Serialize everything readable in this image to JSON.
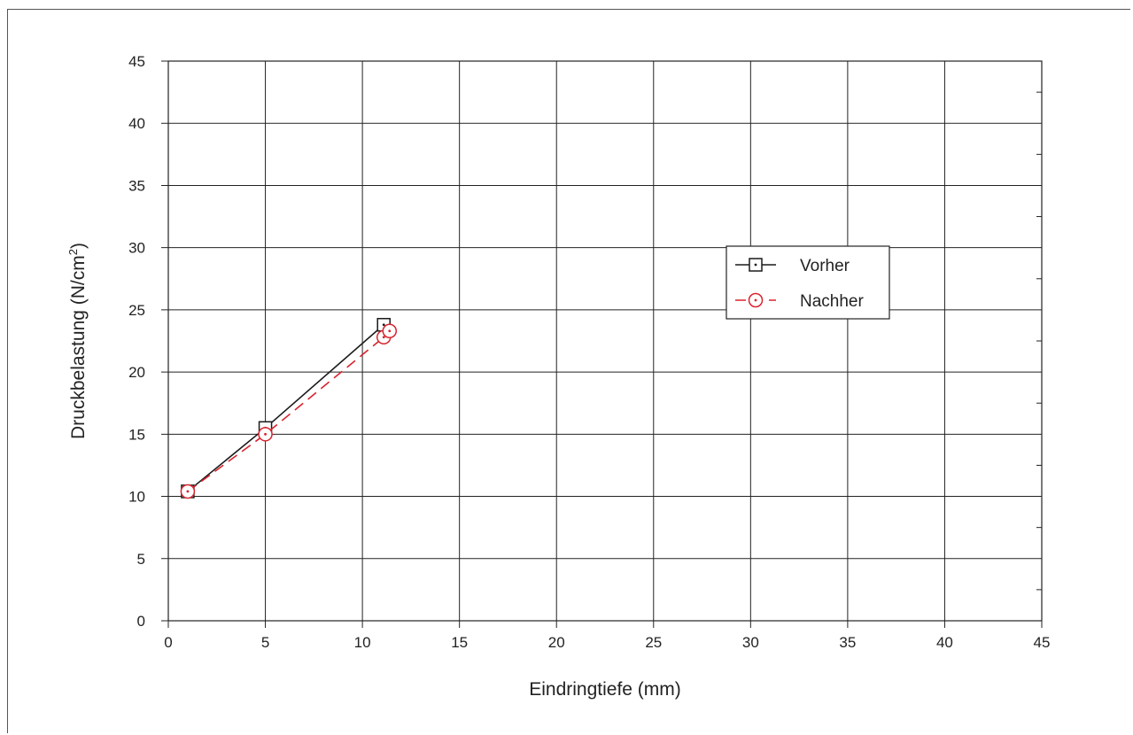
{
  "chart_data": {
    "type": "line",
    "title": "",
    "xlabel": "Eindringtiefe (mm)",
    "ylabel_main": "Druckbelastung (N/cm",
    "ylabel_sup": "2",
    "ylabel_end": ")",
    "xlim": [
      0,
      45
    ],
    "ylim": [
      0,
      45
    ],
    "xticks": [
      0,
      5,
      10,
      15,
      20,
      25,
      30,
      35,
      40,
      45
    ],
    "yticks": [
      0,
      5,
      10,
      15,
      20,
      25,
      30,
      35,
      40,
      45
    ],
    "grid": true,
    "legend_position": "right",
    "series": [
      {
        "name": "Vorher",
        "color": "#1a1a1a",
        "dash": "solid",
        "marker": "dotted-square",
        "points": [
          [
            1.0,
            10.4
          ],
          [
            5.0,
            15.5
          ],
          [
            11.1,
            23.8
          ]
        ]
      },
      {
        "name": "Nachher",
        "color": "#d9232e",
        "dash": "dashed",
        "marker": "dotted-circle",
        "points": [
          [
            1.0,
            10.4
          ],
          [
            5.0,
            15.0
          ],
          [
            11.1,
            22.8
          ],
          [
            11.4,
            23.3
          ]
        ]
      }
    ]
  }
}
